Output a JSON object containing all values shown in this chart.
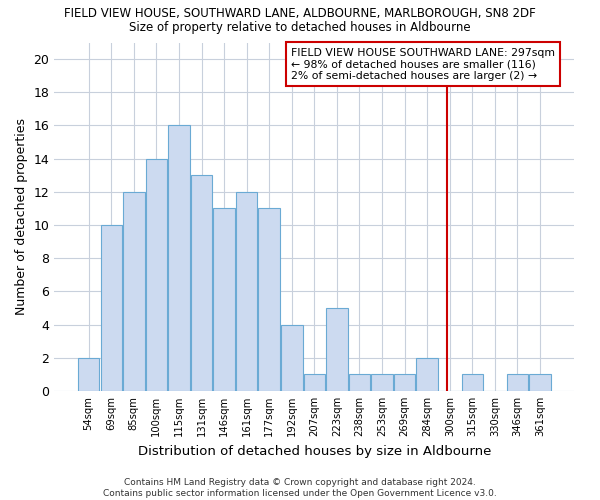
{
  "title1": "FIELD VIEW HOUSE, SOUTHWARD LANE, ALDBOURNE, MARLBOROUGH, SN8 2DF",
  "title2": "Size of property relative to detached houses in Aldbourne",
  "xlabel": "Distribution of detached houses by size in Aldbourne",
  "ylabel": "Number of detached properties",
  "bin_labels": [
    "54sqm",
    "69sqm",
    "85sqm",
    "100sqm",
    "115sqm",
    "131sqm",
    "146sqm",
    "161sqm",
    "177sqm",
    "192sqm",
    "207sqm",
    "223sqm",
    "238sqm",
    "253sqm",
    "269sqm",
    "284sqm",
    "300sqm",
    "315sqm",
    "330sqm",
    "346sqm",
    "361sqm"
  ],
  "bar_heights": [
    2,
    10,
    12,
    14,
    16,
    13,
    11,
    12,
    11,
    4,
    1,
    5,
    1,
    1,
    1,
    2,
    0,
    1,
    0,
    1,
    1
  ],
  "bar_color": "#ccdaf0",
  "bar_edge_color": "#6aaad4",
  "vline_x": 15.87,
  "vline_color": "#cc0000",
  "annotation_text": "FIELD VIEW HOUSE SOUTHWARD LANE: 297sqm\n← 98% of detached houses are smaller (116)\n2% of semi-detached houses are larger (2) →",
  "ylim": [
    0,
    21
  ],
  "yticks": [
    0,
    2,
    4,
    6,
    8,
    10,
    12,
    14,
    16,
    18,
    20
  ],
  "footer": "Contains HM Land Registry data © Crown copyright and database right 2024.\nContains public sector information licensed under the Open Government Licence v3.0.",
  "background_color": "#ffffff",
  "grid_color": "#c8d0dc"
}
